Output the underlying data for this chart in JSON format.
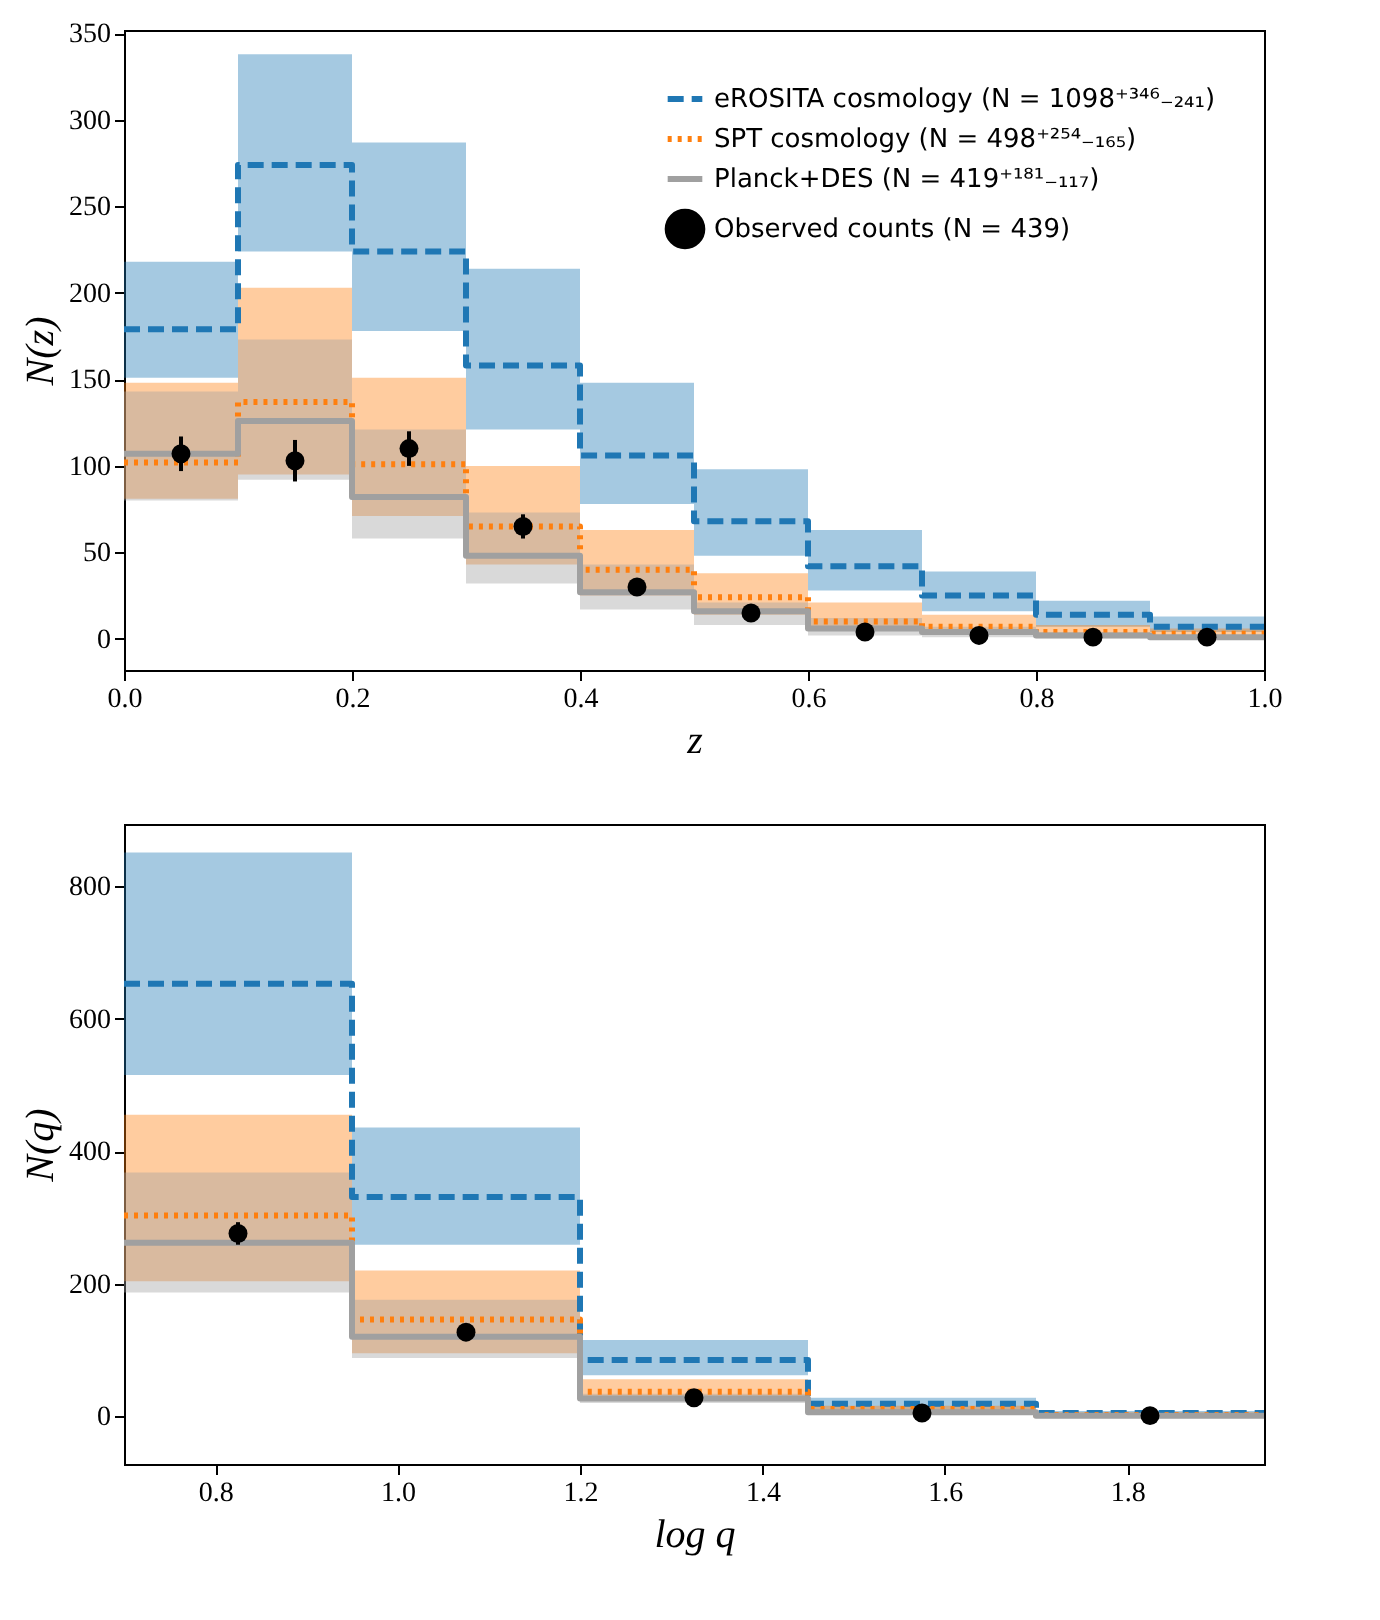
{
  "chart_data": [
    {
      "type": "step",
      "xlabel": "z",
      "ylabel": "N(z)",
      "legend": "top right",
      "xlim": [
        0,
        1
      ],
      "ylim": [
        -18,
        352
      ],
      "xticks": [
        {
          "value": 0,
          "label": "0.0"
        },
        {
          "value": 0.2,
          "label": "0.2"
        },
        {
          "value": 0.4,
          "label": "0.4"
        },
        {
          "value": 0.6,
          "label": "0.6"
        },
        {
          "value": 0.8,
          "label": "0.8"
        },
        {
          "value": 1,
          "label": "1.0"
        }
      ],
      "yticks": [
        0,
        50,
        100,
        150,
        200,
        250,
        300,
        350
      ],
      "x": [
        0,
        0.1,
        0.2,
        0.3,
        0.4,
        0.5,
        0.6,
        0.7,
        0.8,
        0.9,
        1.0
      ],
      "series": [
        {
          "name": "eROSITA cosmology (N = 1098⁺³⁴⁶₋₂₄₁)",
          "color": "#1f77b4",
          "line_style": "dashed",
          "values": [
            179,
            274,
            224,
            158,
            106,
            68,
            42,
            25,
            14,
            7,
            7
          ],
          "lower": [
            151,
            224,
            178,
            121,
            78,
            48,
            28,
            16,
            7,
            4,
            4
          ],
          "upper": [
            218,
            338,
            287,
            214,
            148,
            98,
            63,
            39,
            22,
            13,
            13
          ]
        },
        {
          "name": "SPT cosmology (N = 498⁺²⁵⁴₋₁₆₅)",
          "color": "#ff7f0e",
          "line_style": "dotted",
          "values": [
            102,
            137,
            101,
            65,
            40,
            24,
            10,
            7,
            4,
            3,
            3
          ],
          "lower": [
            81,
            95,
            71,
            43,
            25,
            14,
            5,
            3,
            2,
            1,
            1
          ],
          "upper": [
            148,
            203,
            151,
            100,
            63,
            38,
            21,
            14,
            8,
            6,
            6
          ]
        },
        {
          "name": "Planck+DES (N = 419⁺¹⁸¹₋₁₁₇)",
          "color": "#a0a0a0",
          "line_style": "solid",
          "values": [
            107,
            126,
            82,
            48,
            27,
            16,
            6,
            4,
            2,
            1,
            1
          ],
          "lower": [
            80,
            92,
            58,
            32,
            17,
            8,
            2,
            1,
            0.4,
            0,
            0
          ],
          "upper": [
            143,
            173,
            121,
            73,
            43,
            21,
            12,
            7,
            4,
            2,
            2
          ]
        },
        {
          "name": "Observed counts (N = 439)",
          "type": "scatter",
          "marker": "circle",
          "color": "#000000",
          "x": [
            0.05,
            0.15,
            0.25,
            0.35,
            0.45,
            0.55,
            0.65,
            0.75,
            0.85,
            0.95
          ],
          "values": [
            107,
            103,
            110,
            65,
            30,
            15,
            4,
            2,
            1,
            1
          ],
          "errors": [
            10,
            12,
            10,
            7,
            null,
            null,
            null,
            null,
            null,
            null
          ]
        }
      ]
    },
    {
      "type": "step",
      "xlabel": "log q",
      "ylabel": "N(q)",
      "legend": "top right",
      "xlim": [
        0.7,
        1.95
      ],
      "ylim": [
        -72,
        894
      ],
      "xticks": [
        {
          "value": 0.8,
          "label": "0.8"
        },
        {
          "value": 1,
          "label": "1.0"
        },
        {
          "value": 1.2,
          "label": "1.2"
        },
        {
          "value": 1.4,
          "label": "1.4"
        },
        {
          "value": 1.6,
          "label": "1.6"
        },
        {
          "value": 1.8,
          "label": "1.8"
        }
      ],
      "yticks": [
        0,
        200,
        400,
        600,
        800
      ],
      "x": [
        0.7,
        0.95,
        1.2,
        1.45,
        1.7,
        1.95
      ],
      "series": [
        {
          "name": "eROSITA cosmology (N = 1098⁺³⁴⁶₋₂₄₁)",
          "color": "#1f77b4",
          "line_style": "dashed",
          "values": [
            653,
            331,
            85,
            19,
            5,
            5
          ],
          "lower": [
            515,
            259,
            62,
            6,
            2,
            2
          ],
          "upper": [
            851,
            436,
            115,
            28,
            8,
            8
          ]
        },
        {
          "name": "SPT cosmology (N = 498⁺²⁵⁴₋₁₆₅)",
          "color": "#ff7f0e",
          "line_style": "dotted",
          "values": [
            303,
            146,
            37,
            11,
            2,
            2
          ],
          "lower": [
            204,
            95,
            25,
            6,
            0.5,
            0.5
          ],
          "upper": [
            455,
            220,
            56,
            16,
            6,
            6
          ]
        },
        {
          "name": "Planck+DES (N = 419⁺¹⁸¹₋₁₁₇)",
          "color": "#a0a0a0",
          "line_style": "solid",
          "values": [
            262,
            120,
            27,
            6,
            1,
            1
          ],
          "lower": [
            187,
            88,
            20,
            2,
            0,
            0
          ],
          "upper": [
            368,
            176,
            34,
            9,
            4,
            4
          ]
        },
        {
          "name": "Observed counts (N = 439)",
          "type": "scatter",
          "marker": "circle",
          "color": "#000000",
          "x": [
            0.825,
            1.075,
            1.325,
            1.575,
            1.825
          ],
          "values": [
            276,
            127,
            28,
            5,
            1
          ],
          "errors": [
            17,
            null,
            null,
            null,
            null
          ]
        }
      ]
    }
  ]
}
